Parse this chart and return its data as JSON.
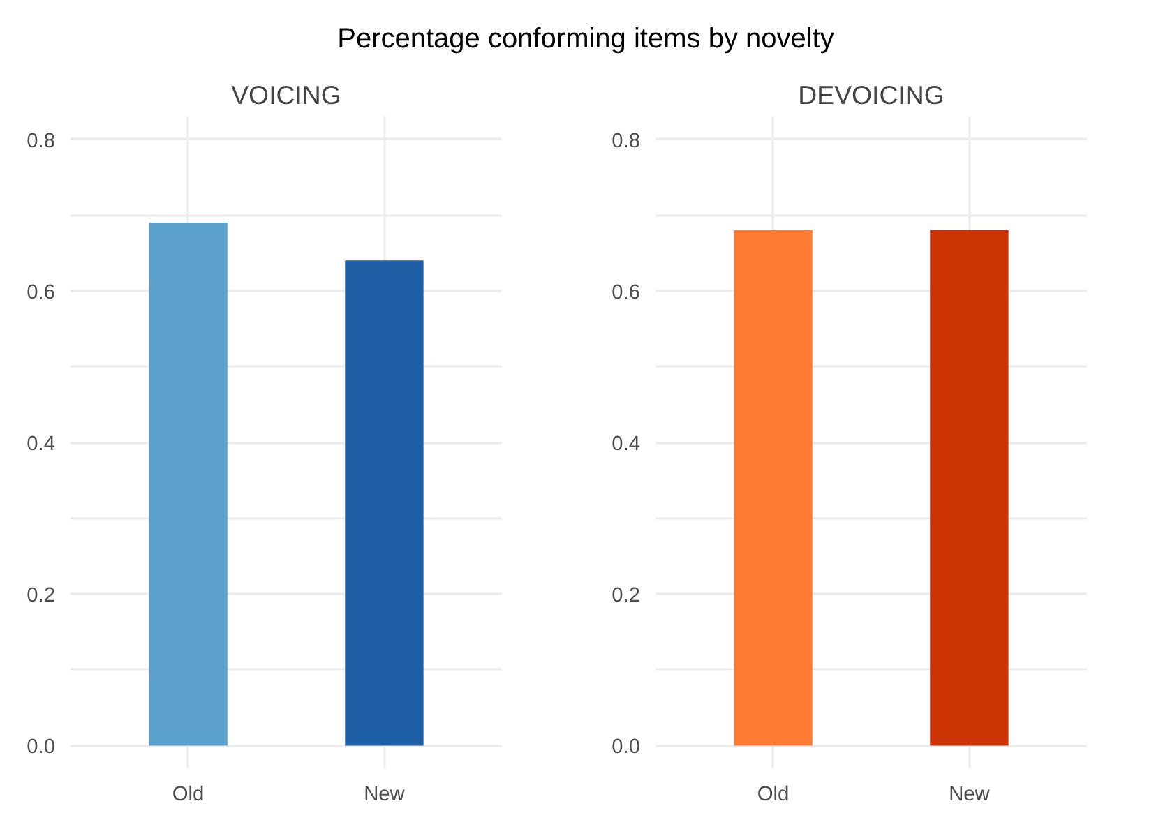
{
  "chart_data": [
    {
      "type": "bar",
      "title": "Percentage conforming items by novelty",
      "subtitle": "VOICING",
      "categories": [
        "Old",
        "New"
      ],
      "values": [
        0.69,
        0.64
      ],
      "colors": [
        "#5ba0cc",
        "#1f5fa6"
      ],
      "ylim": [
        -0.03,
        0.83
      ],
      "yticks": [
        {
          "value": 0.0,
          "label": "0.0"
        },
        {
          "value": 0.1,
          "label": null
        },
        {
          "value": 0.2,
          "label": "0.2"
        },
        {
          "value": 0.3,
          "label": null
        },
        {
          "value": 0.4,
          "label": "0.4"
        },
        {
          "value": 0.5,
          "label": null
        },
        {
          "value": 0.6,
          "label": "0.6"
        },
        {
          "value": 0.7,
          "label": null
        },
        {
          "value": 0.8,
          "label": "0.8"
        }
      ],
      "grid": true
    },
    {
      "type": "bar",
      "subtitle": "DEVOICING",
      "categories": [
        "Old",
        "New"
      ],
      "values": [
        0.68,
        0.68
      ],
      "colors": [
        "#fd7b33",
        "#cc3305"
      ],
      "ylim": [
        -0.03,
        0.83
      ],
      "yticks": [
        {
          "value": 0.0,
          "label": "0.0"
        },
        {
          "value": 0.1,
          "label": null
        },
        {
          "value": 0.2,
          "label": "0.2"
        },
        {
          "value": 0.3,
          "label": null
        },
        {
          "value": 0.4,
          "label": "0.4"
        },
        {
          "value": 0.5,
          "label": null
        },
        {
          "value": 0.6,
          "label": "0.6"
        },
        {
          "value": 0.7,
          "label": null
        },
        {
          "value": 0.8,
          "label": "0.8"
        }
      ],
      "grid": true
    }
  ]
}
